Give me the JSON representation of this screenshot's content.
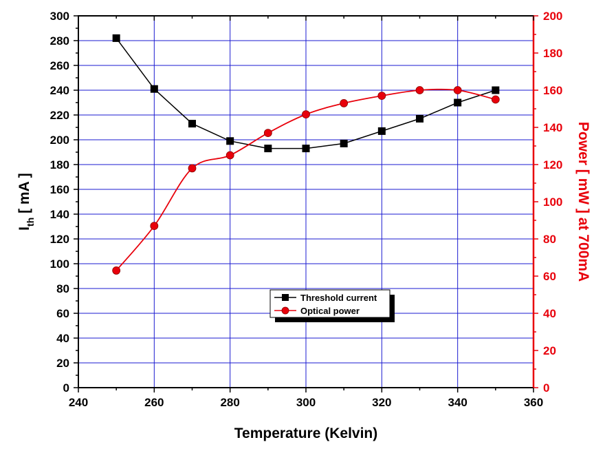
{
  "chart_data": {
    "type": "line",
    "xlabel": "Temperature (Kelvin)",
    "ylabel_left": {
      "main": "I",
      "sub": "th",
      "rest": " [ mA ]"
    },
    "ylabel_right": "Power [ mW ] at 700mA",
    "xlim": [
      240,
      360
    ],
    "x_ticks": [
      240,
      260,
      280,
      300,
      320,
      340,
      360
    ],
    "ylim_left": [
      0,
      300
    ],
    "y_ticks_left": [
      0,
      20,
      40,
      60,
      80,
      100,
      120,
      140,
      160,
      180,
      200,
      220,
      240,
      260,
      280,
      300
    ],
    "ylim_right": [
      0,
      200
    ],
    "y_ticks_right": [
      0,
      20,
      40,
      60,
      80,
      100,
      120,
      140,
      160,
      180,
      200
    ],
    "grid": true,
    "legend_position": "bottom-center",
    "series": [
      {
        "name": "Threshold current",
        "axis": "left",
        "color": "#000000",
        "marker": "square",
        "x": [
          250,
          260,
          270,
          280,
          290,
          300,
          310,
          320,
          330,
          340,
          350
        ],
        "values": [
          282,
          241,
          213,
          199,
          193,
          193,
          197,
          207,
          217,
          230,
          240
        ]
      },
      {
        "name": "Optical power",
        "axis": "right",
        "color": "#e8000b",
        "marker": "circle",
        "x": [
          250,
          260,
          270,
          280,
          290,
          300,
          310,
          320,
          330,
          340,
          350
        ],
        "values": [
          63,
          87,
          118,
          125,
          137,
          147,
          153,
          157,
          160,
          160,
          155
        ]
      }
    ]
  },
  "colors": {
    "grid": "#1a1ad0",
    "axis_left": "#000000",
    "axis_right": "#e8000b"
  }
}
